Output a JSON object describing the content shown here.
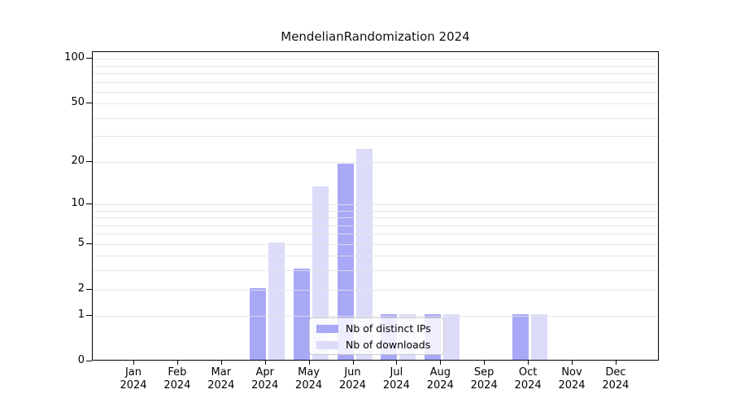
{
  "title": "MendelianRandomization 2024",
  "legend": {
    "items": [
      {
        "label": "Nb of distinct IPs",
        "color": "#a8a8f7"
      },
      {
        "label": "Nb of downloads",
        "color": "#dcdcfa"
      }
    ]
  },
  "chart_data": {
    "type": "bar",
    "title": "MendelianRandomization 2024",
    "categories": [
      "Jan 2024",
      "Feb 2024",
      "Mar 2024",
      "Apr 2024",
      "May 2024",
      "Jun 2024",
      "Jul 2024",
      "Aug 2024",
      "Sep 2024",
      "Oct 2024",
      "Nov 2024",
      "Dec 2024"
    ],
    "series": [
      {
        "name": "Nb of distinct IPs",
        "color": "#a8a8f7",
        "values": [
          0,
          0,
          0,
          2,
          3,
          19,
          1,
          1,
          0,
          1,
          0,
          0
        ]
      },
      {
        "name": "Nb of downloads",
        "color": "#dcdcfa",
        "values": [
          0,
          0,
          0,
          5,
          13,
          24,
          1,
          1,
          0,
          1,
          0,
          0
        ]
      }
    ],
    "yscale": "log1p",
    "ylim": [
      0,
      111
    ],
    "yticks": [
      0,
      1,
      2,
      5,
      10,
      20,
      50,
      100
    ],
    "ytick_labels": [
      "0",
      "1",
      "2",
      "5",
      "10",
      "20",
      "50",
      "100"
    ],
    "minor_gridline_values": [
      3,
      4,
      6,
      7,
      8,
      9,
      30,
      40,
      60,
      70,
      80,
      90
    ],
    "grid": "on",
    "legend_position": "lower center",
    "colors": {
      "bar_distinct_ips": "#a8a8f7",
      "bar_downloads": "#dcdcfa",
      "gridline": "#e3e3e3",
      "axis": "#000000",
      "legend_border": "#cccccc"
    }
  }
}
